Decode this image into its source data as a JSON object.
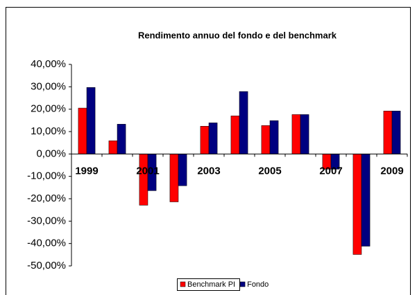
{
  "chart_data": {
    "type": "bar",
    "title": "Rendimento annuo del fondo e del benchmark",
    "categories": [
      "1999",
      null,
      "2001",
      null,
      "2003",
      null,
      "2005",
      null,
      "2007",
      null,
      "2009"
    ],
    "series": [
      {
        "name": "Benchmark PI",
        "color": "#ff0000",
        "values": [
          20.5,
          5.9,
          -22.9,
          -21.4,
          12.4,
          17,
          12.7,
          17.6,
          -6.8,
          -44.9,
          19.2
        ]
      },
      {
        "name": "Fondo",
        "color": "#000080",
        "values": [
          29.7,
          13.3,
          -16.4,
          -14.2,
          13.9,
          27.9,
          14.9,
          17.6,
          -6.8,
          -41.2,
          19.2
        ]
      }
    ],
    "ylim": [
      -50,
      40
    ],
    "yticks": [
      {
        "value": -50,
        "label": "-50,00%"
      },
      {
        "value": -40,
        "label": "-40,00%"
      },
      {
        "value": -30,
        "label": "-30,00%"
      },
      {
        "value": -20,
        "label": "-20,00%"
      },
      {
        "value": -10,
        "label": "-10,00%"
      },
      {
        "value": 0,
        "label": "0,00%"
      },
      {
        "value": 10,
        "label": "10,00%"
      },
      {
        "value": 20,
        "label": "20,00%"
      },
      {
        "value": 30,
        "label": "30,00%"
      },
      {
        "value": 40,
        "label": "40,00%"
      }
    ],
    "grid": false,
    "legend": "bottom"
  }
}
